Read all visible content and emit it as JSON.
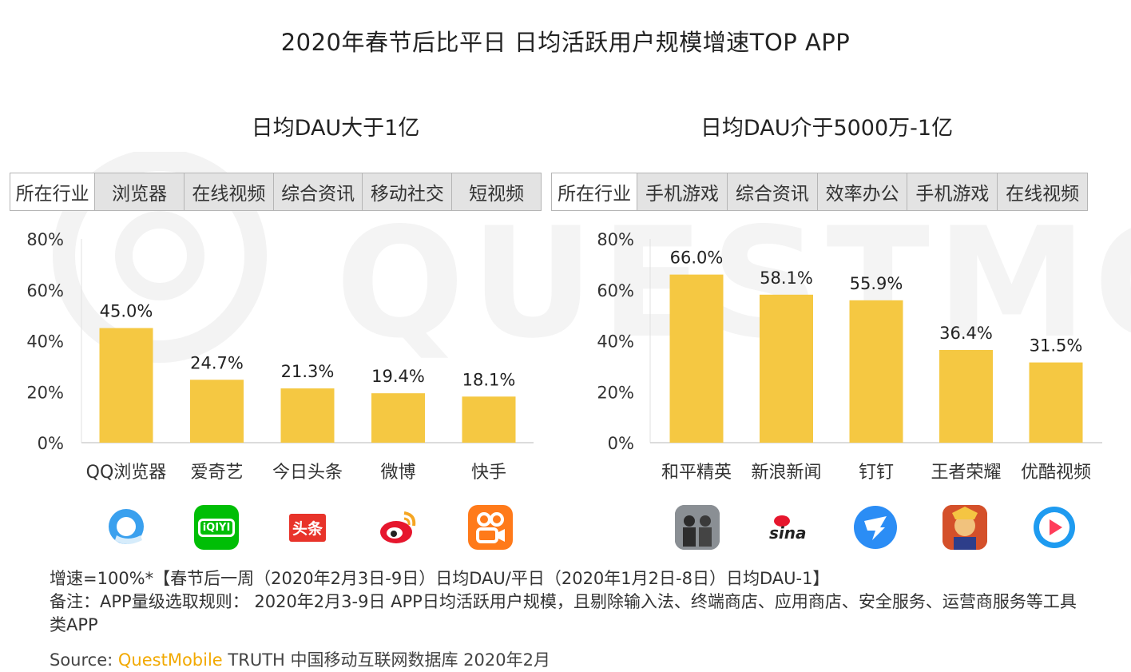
{
  "title": "2020年春节后比平日 日均活跃用户规模增速TOP APP",
  "left_panel": {
    "subtitle": "日均DAU大于1亿",
    "industry_header": "所在行业",
    "industries": [
      "浏览器",
      "在线视频",
      "综合资讯",
      "移动社交",
      "短视频"
    ]
  },
  "right_panel": {
    "subtitle": "日均DAU介于5000万-1亿",
    "industry_header": "所在行业",
    "industries": [
      "手机游戏",
      "综合资讯",
      "效率办公",
      "手机游戏",
      "在线视频"
    ]
  },
  "chart_data": [
    {
      "type": "bar",
      "title": "日均DAU大于1亿",
      "categories": [
        "QQ浏览器",
        "爱奇艺",
        "今日头条",
        "微博",
        "快手"
      ],
      "values": [
        45.0,
        24.7,
        21.3,
        19.4,
        18.1
      ],
      "value_labels": [
        "45.0%",
        "24.7%",
        "21.3%",
        "19.4%",
        "18.1%"
      ],
      "yticks": [
        "0%",
        "20%",
        "40%",
        "60%",
        "80%"
      ],
      "ylim": [
        0,
        80
      ],
      "grid": false,
      "color": "#f5c842"
    },
    {
      "type": "bar",
      "title": "日均DAU介于5000万-1亿",
      "categories": [
        "和平精英",
        "新浪新闻",
        "钉钉",
        "王者荣耀",
        "优酷视频"
      ],
      "values": [
        66.0,
        58.1,
        55.9,
        36.4,
        31.5
      ],
      "value_labels": [
        "66.0%",
        "58.1%",
        "55.9%",
        "36.4%",
        "31.5%"
      ],
      "yticks": [
        "0%",
        "20%",
        "40%",
        "60%",
        "80%"
      ],
      "ylim": [
        0,
        80
      ],
      "grid": false,
      "color": "#f5c842"
    }
  ],
  "icons": {
    "left": [
      "qq-browser-icon",
      "iqiyi-icon",
      "toutiao-icon",
      "weibo-icon",
      "kuaishou-icon"
    ],
    "right": [
      "peacekeeper-elite-icon",
      "sina-news-icon",
      "dingtalk-icon",
      "honor-of-kings-icon",
      "youku-icon"
    ],
    "iqiyi_text": "iQIYI",
    "toutiao_text": "头条",
    "sina_text": "sina"
  },
  "watermark_text": "QUESTMOBILE",
  "notes": {
    "line1": "增速=100%*【春节后一周（2020年2月3日-9日）日均DAU/平日（2020年1月2日-8日）日均DAU-1】",
    "line2": "备注：APP量级选取规则： 2020年2月3-9日 APP日均活跃用户规模，且剔除输入法、终端商店、应用商店、安全服务、运营商服务等工具类APP"
  },
  "source": {
    "label": "Source:",
    "brand": "QuestMobile",
    "text": "TRUTH 中国移动互联网数据库 2020年2月"
  }
}
